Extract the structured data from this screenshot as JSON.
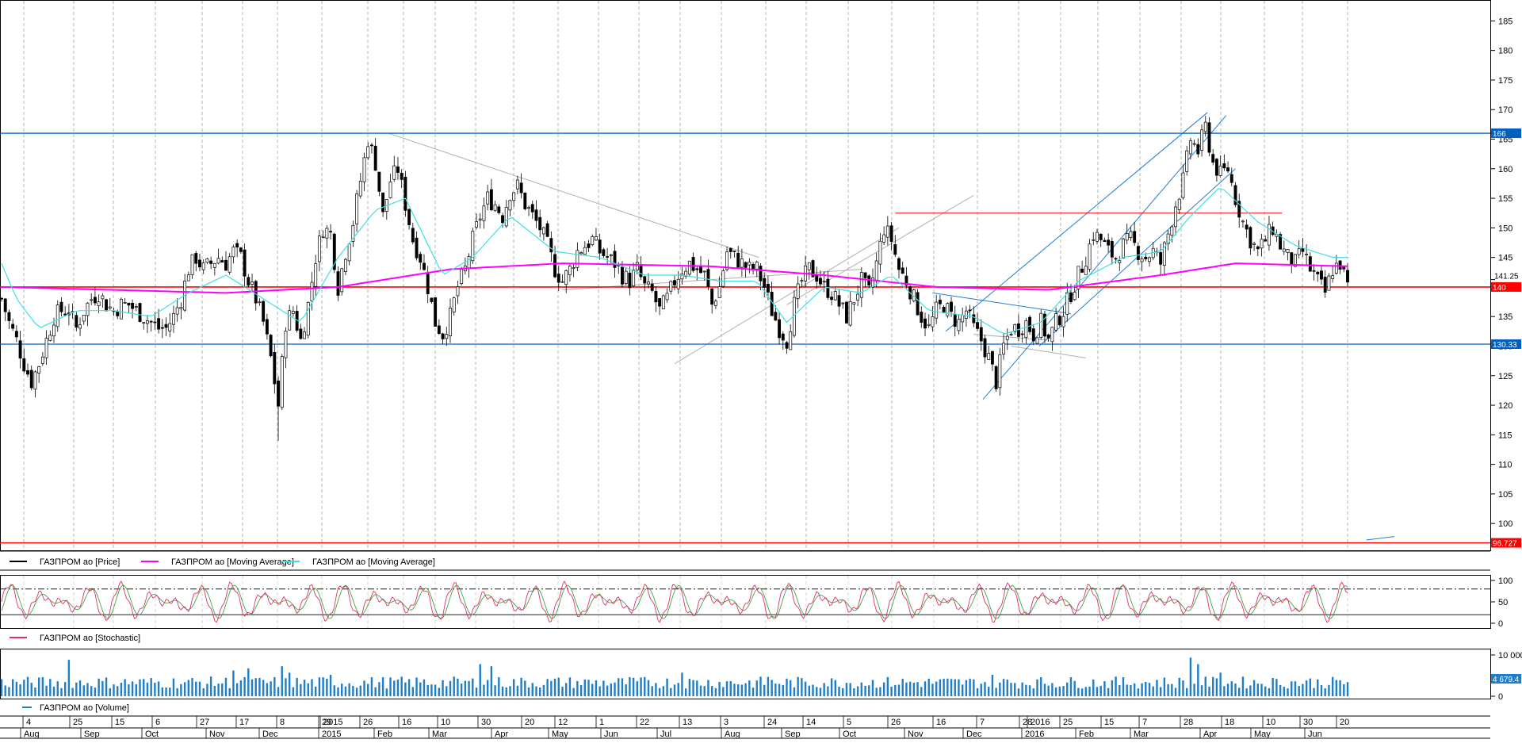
{
  "chart_data": {
    "type": "candlestick",
    "instrument": "ГАЗПРОМ ао",
    "price_panel": {
      "y_ticks": [
        100,
        105,
        110,
        115,
        120,
        125,
        130,
        135,
        140,
        145,
        150,
        155,
        160,
        165,
        170,
        175,
        180,
        185
      ],
      "ylim": [
        96,
        188
      ],
      "last_price_label": "141.25",
      "series": [
        {
          "name": "ГАЗПРОМ ао [Price]",
          "color": "#000000",
          "kind": "candles",
          "approx_close": [
            [
              0,
              138
            ],
            [
              4,
              134
            ],
            [
              8,
              131
            ],
            [
              12,
              127
            ],
            [
              16,
              124
            ],
            [
              20,
              127
            ],
            [
              24,
              131
            ],
            [
              28,
              135
            ],
            [
              32,
              136
            ],
            [
              36,
              136
            ],
            [
              40,
              133
            ],
            [
              44,
              136
            ],
            [
              48,
              138
            ],
            [
              52,
              139
            ],
            [
              56,
              137
            ],
            [
              60,
              136
            ],
            [
              64,
              137
            ],
            [
              68,
              137
            ],
            [
              72,
              136
            ],
            [
              76,
              135
            ],
            [
              80,
              134
            ],
            [
              84,
              133
            ],
            [
              88,
              133
            ],
            [
              92,
              135
            ],
            [
              96,
              138
            ],
            [
              100,
              143
            ],
            [
              104,
              145
            ],
            [
              108,
              143
            ],
            [
              112,
              144
            ],
            [
              116,
              145
            ],
            [
              120,
              144
            ],
            [
              124,
              146
            ],
            [
              128,
              145
            ],
            [
              132,
              141
            ],
            [
              136,
              138
            ],
            [
              140,
              134
            ],
            [
              144,
              128
            ],
            [
              148,
              120
            ],
            [
              152,
              134
            ],
            [
              156,
              136
            ],
            [
              160,
              131
            ],
            [
              164,
              137
            ],
            [
              168,
              145
            ],
            [
              172,
              150
            ],
            [
              176,
              149
            ],
            [
              180,
              140
            ],
            [
              184,
              146
            ],
            [
              188,
              151
            ],
            [
              192,
              158
            ],
            [
              196,
              165
            ],
            [
              200,
              161
            ],
            [
              204,
              152
            ],
            [
              208,
              158
            ],
            [
              212,
              160
            ],
            [
              216,
              154
            ],
            [
              220,
              148
            ],
            [
              224,
              145
            ],
            [
              228,
              140
            ],
            [
              232,
              134
            ],
            [
              236,
              132
            ],
            [
              240,
              135
            ],
            [
              244,
              140
            ],
            [
              248,
              143
            ],
            [
              252,
              148
            ],
            [
              256,
              152
            ],
            [
              260,
              155
            ],
            [
              264,
              154
            ],
            [
              268,
              152
            ],
            [
              272,
              156
            ],
            [
              276,
              157
            ],
            [
              280,
              154
            ],
            [
              284,
              152
            ],
            [
              288,
              150
            ],
            [
              292,
              147
            ],
            [
              296,
              143
            ],
            [
              300,
              141
            ],
            [
              304,
              143
            ],
            [
              308,
              146
            ],
            [
              312,
              147
            ],
            [
              316,
              148
            ],
            [
              320,
              146
            ],
            [
              324,
              145
            ],
            [
              328,
              144
            ],
            [
              332,
              142
            ],
            [
              336,
              141
            ],
            [
              340,
              143
            ],
            [
              344,
              140
            ],
            [
              348,
              139
            ],
            [
              352,
              136
            ],
            [
              356,
              138
            ],
            [
              360,
              141
            ],
            [
              364,
              143
            ],
            [
              368,
              144
            ],
            [
              372,
              143
            ],
            [
              376,
              142
            ],
            [
              380,
              137
            ],
            [
              384,
              140
            ],
            [
              388,
              146
            ],
            [
              392,
              145
            ],
            [
              396,
              144
            ],
            [
              400,
              143
            ],
            [
              404,
              143
            ],
            [
              408,
              140
            ],
            [
              412,
              136
            ],
            [
              416,
              133
            ],
            [
              420,
              131
            ],
            [
              424,
              137
            ],
            [
              428,
              141
            ],
            [
              432,
              143
            ],
            [
              436,
              142
            ],
            [
              440,
              140
            ],
            [
              444,
              139
            ],
            [
              448,
              137
            ],
            [
              452,
              135
            ],
            [
              456,
              138
            ],
            [
              460,
              141
            ],
            [
              464,
              139
            ],
            [
              468,
              144
            ],
            [
              472,
              150
            ],
            [
              476,
              148
            ],
            [
              480,
              143
            ],
            [
              484,
              141
            ],
            [
              488,
              138
            ],
            [
              492,
              135
            ],
            [
              496,
              133
            ],
            [
              500,
              136
            ],
            [
              504,
              137
            ],
            [
              508,
              135
            ],
            [
              512,
              134
            ],
            [
              516,
              136
            ],
            [
              520,
              133
            ],
            [
              524,
              131
            ],
            [
              528,
              128
            ],
            [
              532,
              124
            ],
            [
              536,
              130
            ],
            [
              540,
              133
            ],
            [
              544,
              133
            ],
            [
              548,
              134
            ],
            [
              552,
              132
            ],
            [
              556,
              134
            ],
            [
              560,
              131
            ],
            [
              564,
              134
            ],
            [
              568,
              136
            ],
            [
              572,
              139
            ],
            [
              576,
              142
            ],
            [
              580,
              145
            ],
            [
              584,
              149
            ],
            [
              588,
              148
            ],
            [
              592,
              146
            ],
            [
              596,
              145
            ],
            [
              600,
              147
            ],
            [
              604,
              148
            ],
            [
              608,
              146
            ],
            [
              612,
              145
            ],
            [
              616,
              146
            ],
            [
              620,
              144
            ],
            [
              624,
              149
            ],
            [
              628,
              154
            ],
            [
              632,
              158
            ],
            [
              636,
              165
            ],
            [
              640,
              163
            ],
            [
              644,
              167
            ],
            [
              648,
              161
            ],
            [
              652,
              159
            ],
            [
              656,
              160
            ],
            [
              660,
              155
            ],
            [
              664,
              151
            ],
            [
              668,
              148
            ],
            [
              672,
              146
            ],
            [
              676,
              148
            ],
            [
              680,
              150
            ],
            [
              684,
              147
            ],
            [
              688,
              145
            ],
            [
              692,
              144
            ],
            [
              696,
              146
            ],
            [
              700,
              143
            ],
            [
              704,
              141
            ],
            [
              708,
              139
            ],
            [
              712,
              143
            ],
            [
              716,
              144
            ],
            [
              720,
              140
            ]
          ]
        },
        {
          "name": "ГАЗПРОМ ао [Moving Average]",
          "color": "#ff00ff",
          "kind": "line",
          "period": "long",
          "approx_values": [
            [
              0,
              140
            ],
            [
              120,
              139
            ],
            [
              180,
              140
            ],
            [
              240,
              143
            ],
            [
              300,
              144
            ],
            [
              380,
              143.5
            ],
            [
              440,
              142
            ],
            [
              500,
              140
            ],
            [
              560,
              139.5
            ],
            [
              620,
              142
            ],
            [
              660,
              144
            ],
            [
              720,
              143.5
            ]
          ]
        },
        {
          "name": "ГАЗПРОМ ао [Moving Average]",
          "color": "#40e0e0",
          "kind": "line",
          "period": "short",
          "approx_values": [
            [
              0,
              144
            ],
            [
              8,
              138
            ],
            [
              20,
              133
            ],
            [
              40,
              136
            ],
            [
              60,
              136
            ],
            [
              80,
              135
            ],
            [
              100,
              139
            ],
            [
              120,
              142
            ],
            [
              140,
              138
            ],
            [
              160,
              134
            ],
            [
              180,
              145
            ],
            [
              200,
              153
            ],
            [
              216,
              155
            ],
            [
              236,
              142
            ],
            [
              252,
              145
            ],
            [
              272,
              152
            ],
            [
              296,
              146
            ],
            [
              320,
              145
            ],
            [
              344,
              142
            ],
            [
              364,
              142
            ],
            [
              384,
              141
            ],
            [
              404,
              141
            ],
            [
              420,
              134
            ],
            [
              440,
              140
            ],
            [
              460,
              139
            ],
            [
              476,
              142
            ],
            [
              496,
              136
            ],
            [
              520,
              135
            ],
            [
              536,
              132
            ],
            [
              556,
              134
            ],
            [
              576,
              141
            ],
            [
              600,
              145
            ],
            [
              620,
              146
            ],
            [
              636,
              152
            ],
            [
              652,
              157
            ],
            [
              672,
              151
            ],
            [
              692,
              147
            ],
            [
              712,
              145
            ],
            [
              720,
              145
            ]
          ]
        }
      ],
      "horizontal_levels": [
        {
          "value": 166,
          "color": "#0060c0",
          "label": "166"
        },
        {
          "value": 140,
          "color": "#ff0000",
          "label": "140"
        },
        {
          "value": 130.33,
          "color": "#0060c0",
          "label": "130.33"
        },
        {
          "value": 96.727,
          "color": "#ff0000",
          "label": "96.727"
        }
      ]
    },
    "legend": [
      {
        "label": "ГАЗПРОМ ао [Price]",
        "color": "#000000"
      },
      {
        "label": "ГАЗПРОМ ао [Moving Average]",
        "color": "#ff00ff"
      },
      {
        "label": "ГАЗПРОМ ао [Moving Average]",
        "color": "#40e0e0"
      }
    ],
    "stochastic_panel": {
      "legend": "ГАЗПРОМ ао [Stochastic]",
      "y_ticks": [
        0,
        50,
        100
      ],
      "levels": [
        80,
        20
      ]
    },
    "volume_panel": {
      "legend": "ГАЗПРОМ ао [Volume]",
      "y_ticks": [
        "0",
        "10 000"
      ],
      "last_value_label": "4 679.4"
    },
    "x_axis": {
      "day_labels": [
        "4",
        "25",
        "15",
        "6",
        "27",
        "17",
        "8",
        "29",
        "2015",
        "26",
        "16",
        "10",
        "30",
        "20",
        "12",
        "1",
        "22",
        "13",
        "3",
        "24",
        "14",
        "5",
        "26",
        "16",
        "7",
        "28",
        "2016",
        "25",
        "15",
        "7",
        "28",
        "18",
        "10",
        "30",
        "20"
      ],
      "month_labels": [
        "Aug",
        "Sep",
        "Oct",
        "Nov",
        "Dec",
        "2015",
        "Feb",
        "Mar",
        "Apr",
        "May",
        "Jun",
        "Jul",
        "Aug",
        "Sep",
        "Oct",
        "Nov",
        "Dec",
        "2016",
        "Feb",
        "Mar",
        "Apr",
        "May",
        "Jun"
      ]
    }
  }
}
